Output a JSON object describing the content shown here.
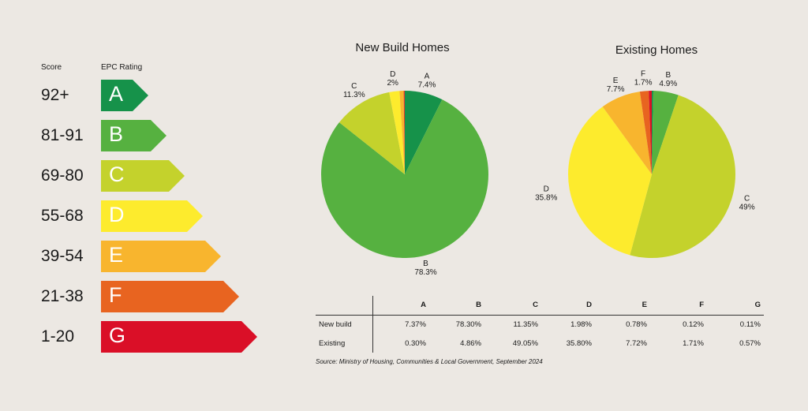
{
  "headers": {
    "score": "Score",
    "rating": "EPC Rating"
  },
  "bands": [
    {
      "score": "92+",
      "letter": "A",
      "color": "#16924a"
    },
    {
      "score": "81-91",
      "letter": "B",
      "color": "#56b140"
    },
    {
      "score": "69-80",
      "letter": "C",
      "color": "#c4d22c"
    },
    {
      "score": "55-68",
      "letter": "D",
      "color": "#fdeb2d"
    },
    {
      "score": "39-54",
      "letter": "E",
      "color": "#f8b52e"
    },
    {
      "score": "21-38",
      "letter": "F",
      "color": "#e86420"
    },
    {
      "score": "1-20",
      "letter": "G",
      "color": "#da0f27"
    }
  ],
  "chart_data": [
    {
      "type": "pie",
      "title": "New Build Homes",
      "categories": [
        "A",
        "B",
        "C",
        "D",
        "E",
        "F",
        "G"
      ],
      "values": [
        7.37,
        78.3,
        11.35,
        1.98,
        0.78,
        0.12,
        0.11
      ],
      "labels": [
        {
          "cat": "A",
          "text": "7.4%"
        },
        {
          "cat": "B",
          "text": "78.3%"
        },
        {
          "cat": "C",
          "text": "11.3%"
        },
        {
          "cat": "D",
          "text": "2%"
        }
      ]
    },
    {
      "type": "pie",
      "title": "Existing Homes",
      "categories": [
        "A",
        "B",
        "C",
        "D",
        "E",
        "F",
        "G"
      ],
      "values": [
        0.3,
        4.86,
        49.05,
        35.8,
        7.72,
        1.71,
        0.57
      ],
      "labels": [
        {
          "cat": "B",
          "text": "4.9%"
        },
        {
          "cat": "C",
          "text": "49%"
        },
        {
          "cat": "D",
          "text": "35.8%"
        },
        {
          "cat": "E",
          "text": "7.7%"
        },
        {
          "cat": "F",
          "text": "1.7%"
        }
      ]
    },
    {
      "type": "table",
      "columns": [
        "A",
        "B",
        "C",
        "D",
        "E",
        "F",
        "G"
      ],
      "rows": [
        {
          "label": "New build",
          "values": [
            "7.37%",
            "78.30%",
            "11.35%",
            "1.98%",
            "0.78%",
            "0.12%",
            "0.11%"
          ]
        },
        {
          "label": "Existing",
          "values": [
            "0.30%",
            "4.86%",
            "49.05%",
            "35.80%",
            "7.72%",
            "1.71%",
            "0.57%"
          ]
        }
      ]
    }
  ],
  "source": "Source: Ministry of Housing, Communities & Local Government, September 2024"
}
